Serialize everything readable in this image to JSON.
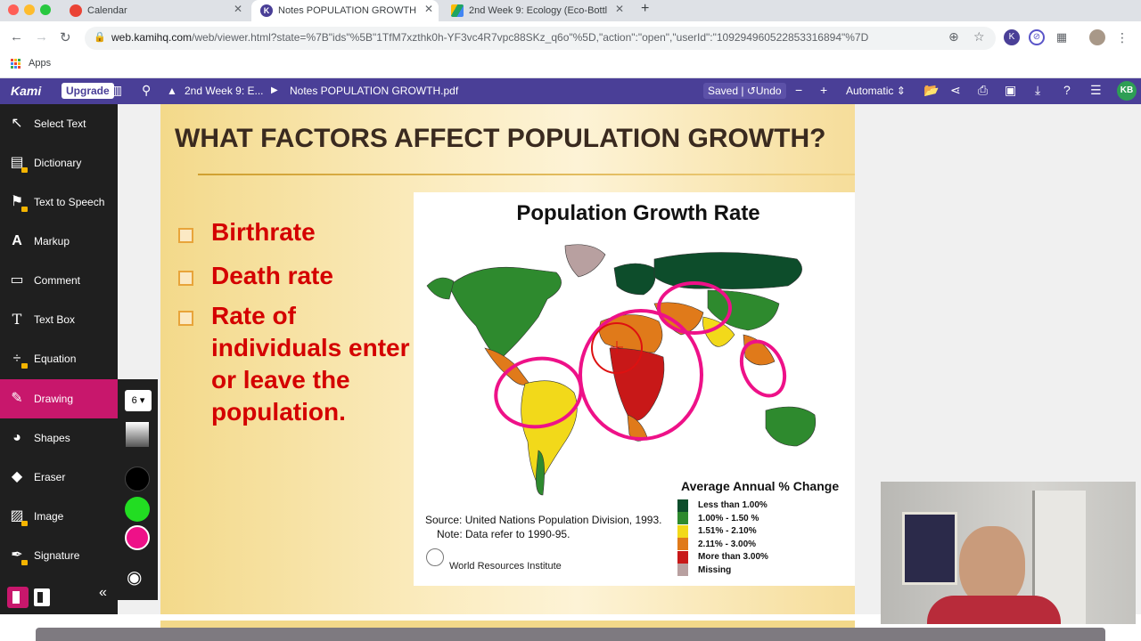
{
  "browser": {
    "tabs": [
      {
        "title": "Calendar",
        "favicon_color": "#ea4335"
      },
      {
        "title": "Notes POPULATION GROWTH.p",
        "favicon_color": "#4a3f97"
      },
      {
        "title": "2nd Week 9: Ecology (Eco-Bottl",
        "favicon_color": "#1fa463"
      }
    ],
    "url_host": "web.kamihq.com",
    "url_path": "/web/viewer.html?state=%7B\"ids\"%5B\"1TfM7xzthk0h-YF3vc4R7vpc88SKz_q6o\"%5D,\"action\":\"open\",\"userId\":\"109294960522853316894\"%7D",
    "bookmarks_apps_label": "Apps"
  },
  "kami": {
    "logo": "Kami",
    "upgrade_label": "Upgrade",
    "breadcrumb_folder": "2nd Week 9: E...",
    "file_name": "Notes POPULATION GROWTH.pdf",
    "saved_label": "Saved",
    "undo_label": "Undo",
    "zoom_label": "Automatic",
    "avatar_initials": "KB",
    "accent_color": "#4a3f97"
  },
  "sidebar": {
    "items": [
      {
        "label": "Select Text",
        "icon": "cursor-icon"
      },
      {
        "label": "Dictionary",
        "icon": "book-icon"
      },
      {
        "label": "Text to Speech",
        "icon": "speaker-icon"
      },
      {
        "label": "Markup",
        "icon": "markup-icon"
      },
      {
        "label": "Comment",
        "icon": "comment-icon"
      },
      {
        "label": "Text Box",
        "icon": "textbox-icon"
      },
      {
        "label": "Equation",
        "icon": "equation-icon"
      },
      {
        "label": "Drawing",
        "icon": "pencil-icon"
      },
      {
        "label": "Shapes",
        "icon": "shapes-icon"
      },
      {
        "label": "Eraser",
        "icon": "eraser-icon"
      },
      {
        "label": "Image",
        "icon": "image-icon"
      },
      {
        "label": "Signature",
        "icon": "signature-icon"
      }
    ],
    "active_label": "Drawing",
    "active_color": "#c8176c"
  },
  "drawing_panel": {
    "stroke_size": "6",
    "colors": [
      "#000000",
      "#22dd22",
      "#ee1188"
    ]
  },
  "slide": {
    "title": "WHAT FACTORS AFFECT POPULATION GROWTH?",
    "bullets": [
      "Birthrate",
      "Death rate",
      "Rate of individuals enter or leave the population."
    ],
    "bullet_lines": [
      "Rate of",
      "individuals enter",
      "or leave the",
      "population."
    ],
    "map": {
      "title": "Population Growth Rate",
      "legend_title": "Average Annual % Change",
      "legend": [
        {
          "label": "Less than 1.00%",
          "color": "#0d4d2b"
        },
        {
          "label": "1.00% - 1.50 %",
          "color": "#2e8a2e"
        },
        {
          "label": "1.51% - 2.10%",
          "color": "#f2d91a"
        },
        {
          "label": "2.11% - 3.00%",
          "color": "#e07a1a"
        },
        {
          "label": "More than 3.00%",
          "color": "#c81818"
        },
        {
          "label": "Missing",
          "color": "#b8a0a0"
        }
      ],
      "source": "Source: United Nations Population Division, 1993.",
      "note": "Note: Data refer to 1990-95.",
      "publisher": "World Resources Institute"
    }
  }
}
